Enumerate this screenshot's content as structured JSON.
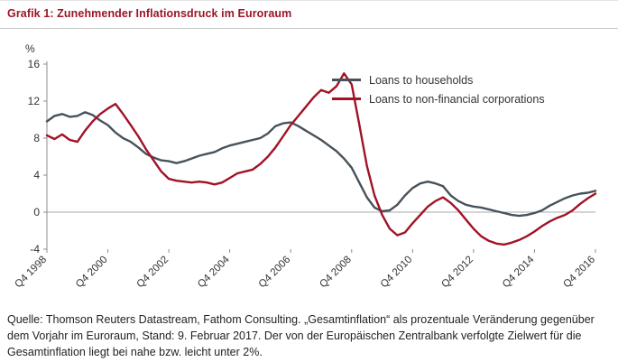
{
  "title": "Grafik 1: Zunehmender Inflationsdruck im Euroraum",
  "colors": {
    "title": "#9b1428",
    "axis": "#8c8c8c",
    "zero_line": "#a8a8a8",
    "tick_text": "#333333"
  },
  "source_text": "Quelle: Thomson Reuters Datastream, Fathom Consulting. „Gesamtinflation“ als prozentuale Veränderung gegenüber dem Vorjahr im Euroraum, Stand: 9. Februar 2017. Der von der Europäischen Zentralbank verfolgte Zielwert für die Gesamtinflation liegt bei nahe bzw. leicht unter 2%.",
  "chart_data": {
    "type": "line",
    "title": "Grafik 1: Zunehmender Inflationsdruck im Euroraum",
    "ylabel": "%",
    "ylim": [
      -4,
      16
    ],
    "yticks": [
      16,
      12,
      8,
      4,
      0,
      -4
    ],
    "grid": false,
    "zero_line": true,
    "legend_position": "top-right",
    "x_unit": "quarters from Q4 1998 to Q4 2016",
    "x_tick_indices": [
      0,
      8,
      16,
      24,
      32,
      40,
      48,
      56,
      64,
      72
    ],
    "x_tick_labels": [
      "Q4 1998",
      "Q4 2000",
      "Q4 2002",
      "Q4 2004",
      "Q4 2006",
      "Q4 2008",
      "Q4 2010",
      "Q4 2012",
      "Q4 2014",
      "Q4 2016"
    ],
    "series": [
      {
        "name": "Loans to households",
        "color": "#47525b",
        "values": [
          9.8,
          10.4,
          10.6,
          10.3,
          10.4,
          10.8,
          10.5,
          9.9,
          9.4,
          8.6,
          8.0,
          7.6,
          7.0,
          6.3,
          5.9,
          5.6,
          5.5,
          5.3,
          5.5,
          5.8,
          6.1,
          6.3,
          6.5,
          6.9,
          7.2,
          7.4,
          7.6,
          7.8,
          8.0,
          8.5,
          9.3,
          9.6,
          9.7,
          9.3,
          8.8,
          8.3,
          7.8,
          7.2,
          6.6,
          5.8,
          4.8,
          3.2,
          1.6,
          0.5,
          0.1,
          0.2,
          0.8,
          1.8,
          2.6,
          3.1,
          3.3,
          3.1,
          2.8,
          1.8,
          1.2,
          0.8,
          0.6,
          0.5,
          0.3,
          0.1,
          -0.1,
          -0.3,
          -0.4,
          -0.3,
          -0.1,
          0.2,
          0.7,
          1.1,
          1.5,
          1.8,
          2.0,
          2.1,
          2.3
        ]
      },
      {
        "name": "Loans to non-financial corporations",
        "color": "#a11226",
        "values": [
          8.3,
          7.9,
          8.4,
          7.8,
          7.6,
          8.8,
          9.8,
          10.6,
          11.2,
          11.7,
          10.6,
          9.4,
          8.2,
          6.8,
          5.6,
          4.4,
          3.6,
          3.4,
          3.3,
          3.2,
          3.3,
          3.2,
          3.0,
          3.2,
          3.7,
          4.2,
          4.4,
          4.6,
          5.2,
          6.0,
          7.0,
          8.2,
          9.4,
          10.4,
          11.4,
          12.4,
          13.2,
          12.9,
          13.6,
          15.0,
          13.8,
          9.5,
          5.0,
          1.8,
          -0.3,
          -1.8,
          -2.5,
          -2.2,
          -1.2,
          -0.3,
          0.6,
          1.2,
          1.6,
          1.0,
          0.2,
          -0.8,
          -1.8,
          -2.6,
          -3.1,
          -3.4,
          -3.5,
          -3.3,
          -3.0,
          -2.6,
          -2.1,
          -1.5,
          -1.0,
          -0.6,
          -0.3,
          0.2,
          0.9,
          1.5,
          2.0
        ]
      }
    ]
  }
}
